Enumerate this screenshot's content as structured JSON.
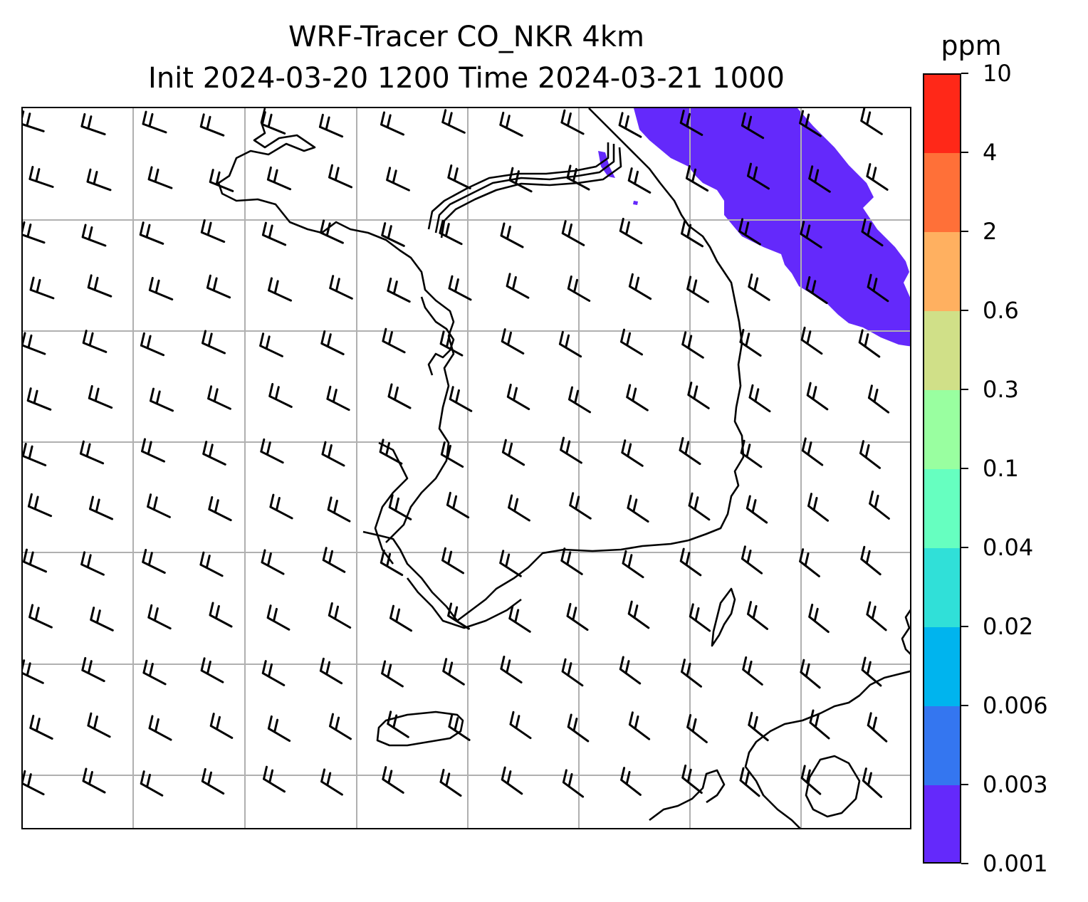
{
  "title_line1": "WRF-Tracer CO_NKR 4km",
  "title_line2": "Init 2024-03-20 1200 Time 2024-03-21 1000",
  "colorbar": {
    "unit": "ppm",
    "levels": [
      "0.001",
      "0.003",
      "0.006",
      "0.02",
      "0.04",
      "0.1",
      "0.3",
      "0.6",
      "2",
      "4",
      "10"
    ],
    "colors": [
      "#6429fb",
      "#3476f0",
      "#00b4ee",
      "#30e0d8",
      "#66ffc0",
      "#99ffa0",
      "#d0e088",
      "#ffb060",
      "#ff7038",
      "#ff2818"
    ]
  },
  "map": {
    "gridlines": true,
    "gridline_color": "#b0b0b0",
    "coastline_color": "#000000",
    "wind_barbs": "uniform grid of barbs, winds mostly from the northwest",
    "tracer_plume": {
      "level_band": "0.001-0.003",
      "color": "#6429fb",
      "location": "northeast corner"
    }
  }
}
